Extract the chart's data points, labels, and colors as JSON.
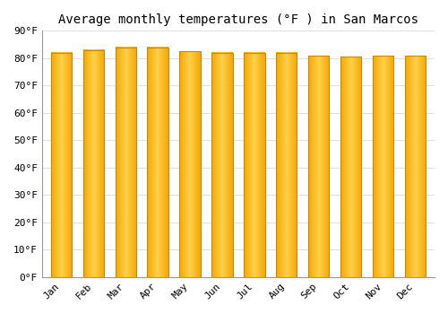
{
  "title": "Average monthly temperatures (°F ) in San Marcos",
  "months": [
    "Jan",
    "Feb",
    "Mar",
    "Apr",
    "May",
    "Jun",
    "Jul",
    "Aug",
    "Sep",
    "Oct",
    "Nov",
    "Dec"
  ],
  "values": [
    82,
    83,
    84,
    84,
    82.5,
    82,
    82,
    82,
    81,
    80.5,
    81,
    81
  ],
  "bar_color_center": "#FFD04A",
  "bar_color_edge": "#F5A800",
  "bar_outline_color": "#C8880A",
  "background_color": "#FFFFFF",
  "grid_color": "#E0E0E0",
  "ylim": [
    0,
    90
  ],
  "yticks": [
    0,
    10,
    20,
    30,
    40,
    50,
    60,
    70,
    80,
    90
  ],
  "ytick_labels": [
    "0°F",
    "10°F",
    "20°F",
    "30°F",
    "40°F",
    "50°F",
    "60°F",
    "70°F",
    "80°F",
    "90°F"
  ],
  "title_fontsize": 10,
  "tick_fontsize": 8,
  "font_family": "monospace"
}
